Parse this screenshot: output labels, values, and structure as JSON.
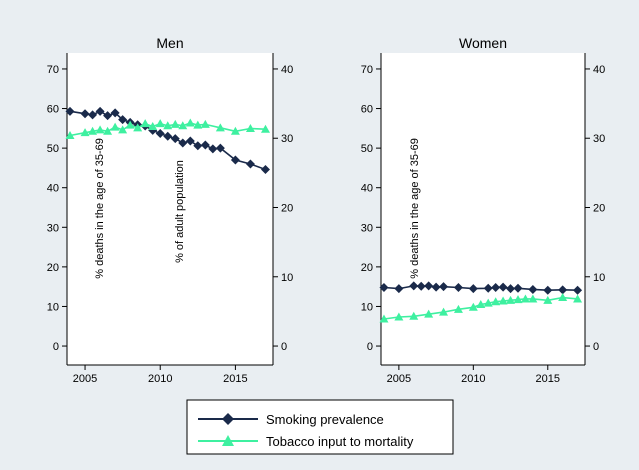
{
  "colors": {
    "background": "#e9eef2",
    "panel": "#ffffff",
    "smoking": "#1a2a4a",
    "tobacco": "#3ef0a0"
  },
  "legend": {
    "smoking_label": "Smoking prevalence",
    "tobacco_label": "Tobacco input to mortality"
  },
  "chart_data": [
    {
      "type": "line",
      "title": "Men",
      "x_ticks": [
        2005,
        2010,
        2015
      ],
      "xlim": [
        2003.8,
        2017.5
      ],
      "left_axis": {
        "ticks": [
          0,
          10,
          20,
          30,
          40,
          50,
          60,
          70
        ],
        "ylim": [
          -1,
          71
        ]
      },
      "right_axis": {
        "ticks": [
          0,
          10,
          20,
          30,
          40
        ],
        "ylim": [
          -0.571,
          40.571
        ]
      },
      "annotations": [
        {
          "text": "% deaths in the age of 35-69",
          "x": 2006.2,
          "y": 17
        },
        {
          "text": "% of adult population",
          "x": 2011.5,
          "y": 21
        }
      ],
      "series": [
        {
          "key": "smoking",
          "axis": "left",
          "x": [
            2004,
            2005,
            2005.5,
            2006,
            2006.5,
            2007,
            2007.5,
            2008,
            2008.5,
            2009,
            2009.5,
            2010,
            2010.5,
            2011,
            2011.5,
            2012,
            2012.5,
            2013,
            2013.5,
            2014,
            2015,
            2016,
            2017
          ],
          "y": [
            59.3,
            58.7,
            58.4,
            59.3,
            58.2,
            58.9,
            57.2,
            56.5,
            55.9,
            55.6,
            54.5,
            53.7,
            53.0,
            52.4,
            51.3,
            51.8,
            50.6,
            50.8,
            49.8,
            50.0,
            47.0,
            46.0,
            44.6
          ]
        },
        {
          "key": "tobacco",
          "axis": "right",
          "x": [
            2004,
            2005,
            2005.5,
            2006,
            2006.5,
            2007,
            2007.5,
            2008,
            2008.5,
            2009,
            2009.5,
            2010,
            2010.5,
            2011,
            2011.5,
            2012,
            2012.5,
            2013,
            2014,
            2015,
            2016,
            2017
          ],
          "y": [
            30.4,
            30.8,
            31.0,
            31.2,
            31.0,
            31.6,
            31.2,
            31.9,
            31.5,
            32.1,
            31.7,
            32.1,
            31.8,
            32.0,
            31.8,
            32.2,
            31.9,
            32.0,
            31.5,
            31.0,
            31.4,
            31.3
          ]
        }
      ]
    },
    {
      "type": "line",
      "title": "Women",
      "x_ticks": [
        2005,
        2010,
        2015
      ],
      "xlim": [
        2003.8,
        2017.5
      ],
      "left_axis": {
        "ticks": [
          0,
          10,
          20,
          30,
          40,
          50,
          60,
          70
        ],
        "ylim": [
          -1,
          71
        ]
      },
      "right_axis": {
        "ticks": [
          0,
          10,
          20,
          30,
          40
        ],
        "ylim": [
          -0.571,
          40.571
        ]
      },
      "annotations": [
        {
          "text": "% deaths in the age of 35-69",
          "x": 2006.3,
          "y": 17
        }
      ],
      "series": [
        {
          "key": "smoking",
          "axis": "left",
          "x": [
            2004,
            2005,
            2006,
            2006.5,
            2007,
            2007.5,
            2008,
            2009,
            2010,
            2011,
            2011.5,
            2012,
            2012.5,
            2013,
            2014,
            2015,
            2016,
            2017
          ],
          "y": [
            14.8,
            14.5,
            15.2,
            15.1,
            15.2,
            14.9,
            15.0,
            14.8,
            14.5,
            14.6,
            14.8,
            14.9,
            14.5,
            14.6,
            14.3,
            14.1,
            14.2,
            14.1
          ]
        },
        {
          "key": "tobacco",
          "axis": "right",
          "x": [
            2004,
            2005,
            2006,
            2007,
            2008,
            2009,
            2010,
            2010.5,
            2011,
            2011.5,
            2012,
            2012.5,
            2013,
            2013.5,
            2014,
            2015,
            2016,
            2017
          ],
          "y": [
            3.9,
            4.2,
            4.3,
            4.6,
            4.9,
            5.3,
            5.6,
            6.0,
            6.2,
            6.4,
            6.5,
            6.6,
            6.7,
            6.8,
            6.8,
            6.6,
            7.0,
            6.8
          ]
        }
      ]
    }
  ]
}
